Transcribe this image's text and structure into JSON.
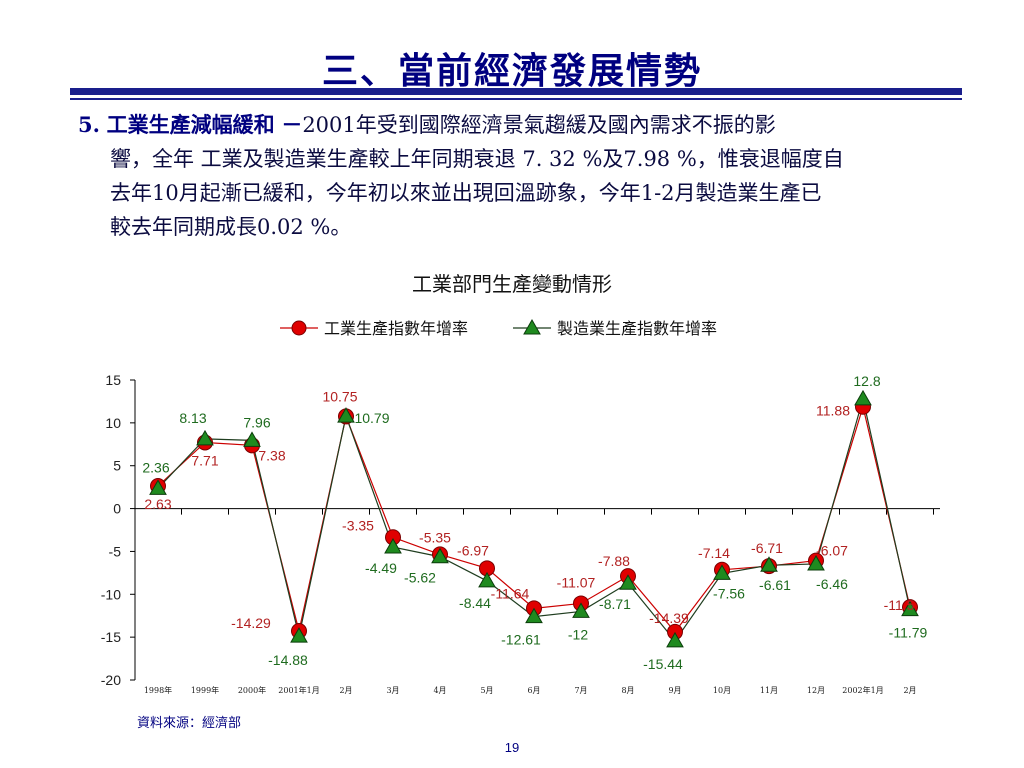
{
  "slide": {
    "title": "三、當前經濟發展情勢",
    "para": {
      "number": "5.",
      "heading": "工業生產減幅緩和",
      "dash": "－",
      "line1": "2001年受到國際經濟景氣趨緩及國內需求不振的影",
      "line2": "響，全年 工業及製造業生產較上年同期衰退 7. 32 %及7.98 %，惟衰退幅度自",
      "line3": "去年10月起漸已緩和，今年初以來並出現回溫跡象，今年1-2月製造業生產已",
      "line4": "較去年同期成長0.02 %。"
    },
    "chart_title": "工業部門生產變動情形",
    "source": "資料來源：經濟部",
    "page_number": "19"
  },
  "chart_data": {
    "type": "line",
    "title": "工業部門生產變動情形",
    "categories": [
      "1998年",
      "1999年",
      "2000年",
      "2001年1月",
      "2月",
      "3月",
      "4月",
      "5月",
      "6月",
      "7月",
      "8月",
      "9月",
      "10月",
      "11月",
      "12月",
      "2002年1月",
      "2月"
    ],
    "ylim": [
      -20,
      15
    ],
    "yticks": [
      15,
      10,
      5,
      0,
      -5,
      -10,
      -15,
      -20
    ],
    "legend_position": "top",
    "grid": false,
    "series": [
      {
        "name": "工業生產指數年增率",
        "marker": "circle",
        "color": "#cc0000",
        "label_color": "#b22222",
        "values": [
          2.63,
          7.71,
          7.38,
          -14.29,
          10.75,
          -3.35,
          -5.35,
          -6.97,
          -11.64,
          -11.07,
          -7.88,
          -14.39,
          -7.14,
          -6.71,
          -6.07,
          11.88,
          -11.5
        ],
        "labels": [
          "2.63",
          "7.71",
          "7.38",
          "-14.29",
          "10.75",
          "-3.35",
          "-5.35",
          "-6.97",
          "-11.64",
          "-11.07",
          "-7.88",
          "-14.39",
          "-7.14",
          "-6.71",
          "-6.07",
          "11.88",
          "-11.5"
        ]
      },
      {
        "name": "製造業生產指數年增率",
        "marker": "triangle",
        "color": "#1a7a1a",
        "label_color": "#1f6b1f",
        "values": [
          2.36,
          8.13,
          7.96,
          -14.88,
          10.79,
          -4.49,
          -5.62,
          -8.44,
          -12.61,
          -12,
          -8.71,
          -15.44,
          -7.56,
          -6.61,
          -6.46,
          12.8,
          -11.79
        ],
        "labels": [
          "2.36",
          "8.13",
          "7.96",
          "-14.88",
          "10.79",
          "-4.49",
          "-5.62",
          "-8.44",
          "-12.61",
          "-12",
          "-8.71",
          "-15.44",
          "-7.56",
          "-6.61",
          "-6.46",
          "12.8",
          "-11.79"
        ]
      }
    ]
  }
}
